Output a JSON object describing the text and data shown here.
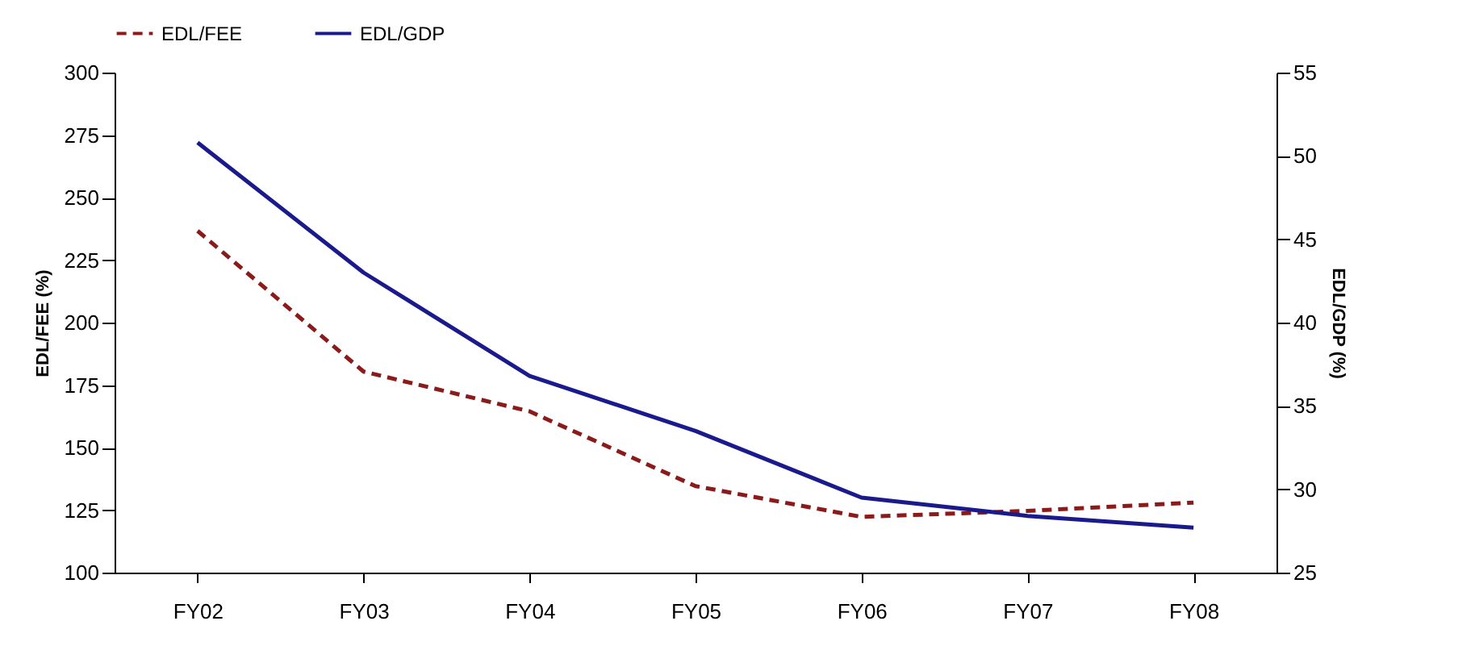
{
  "chart_data": {
    "type": "line",
    "categories": [
      "FY02",
      "FY03",
      "FY04",
      "FY05",
      "FY06",
      "FY07",
      "FY08"
    ],
    "series": [
      {
        "name": "EDL/FEE",
        "color": "#8b1a1a",
        "line_style": "dashed",
        "values": [
          236.7,
          180.4,
          164.5,
          134.6,
          122.3,
          124.7,
          128
        ]
      },
      {
        "name": "EDL/GDP",
        "color": "#1a1a8c",
        "line_style": "solid",
        "axis": "y2",
        "values": [
          50.8,
          43.0,
          36.8,
          33.5,
          29.5,
          28.4,
          27.7
        ]
      }
    ],
    "ylabel": "EDL/FEE (%)",
    "y2label": "EDL/GDP (%)",
    "ylim": [
      100,
      300
    ],
    "yticks": [
      100,
      125,
      150,
      175,
      200,
      225,
      250,
      275,
      300
    ],
    "y2lim": [
      25,
      55
    ],
    "y2ticks": [
      25,
      30,
      35,
      40,
      45,
      50,
      55
    ],
    "grid": false,
    "legend": "top",
    "marker": "none"
  }
}
